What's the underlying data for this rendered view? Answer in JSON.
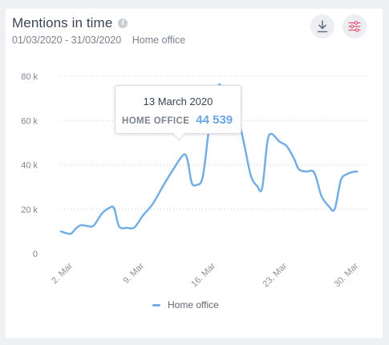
{
  "header": {
    "title": "Mentions in time",
    "date_range": "01/03/2020 - 31/03/2020",
    "filter_label": "Home office"
  },
  "toolbar": {
    "download_icon": "download-icon",
    "settings_icon": "sliders-icon"
  },
  "colors": {
    "line": "#74aee5",
    "tooltip_value": "#6aa6e2",
    "settings_icon": "#e4547a",
    "grid": "#c9ced6"
  },
  "tooltip": {
    "date": "13 March 2020",
    "series": "HOME OFFICE",
    "value": "44 539"
  },
  "chart_data": {
    "type": "line",
    "title": "Mentions in time",
    "x_tick_labels": [
      "2. Mar",
      "9. Mar",
      "16. Mar",
      "23. Mar",
      "30. Mar"
    ],
    "x_tick_days": [
      2,
      9,
      16,
      23,
      30
    ],
    "y_tick_labels": [
      "0",
      "20 k",
      "40 k",
      "60 k",
      "80 k"
    ],
    "y_ticks": [
      0,
      20000,
      40000,
      60000,
      80000
    ],
    "ylim": [
      0,
      80000
    ],
    "xlim": [
      1,
      31
    ],
    "grid": true,
    "legend_position": "bottom-center",
    "series": [
      {
        "name": "Home office",
        "points": [
          [
            1,
            10000
          ],
          [
            1.5,
            9200
          ],
          [
            2,
            9000
          ],
          [
            2.5,
            11500
          ],
          [
            3,
            12800
          ],
          [
            3.6,
            12400
          ],
          [
            4.2,
            12600
          ],
          [
            5,
            18000
          ],
          [
            5.7,
            20500
          ],
          [
            6.2,
            20500
          ],
          [
            6.7,
            12200
          ],
          [
            7.5,
            11600
          ],
          [
            8.2,
            11800
          ],
          [
            9,
            17000
          ],
          [
            10,
            22500
          ],
          [
            11,
            30500
          ],
          [
            12,
            38000
          ],
          [
            13,
            44539
          ],
          [
            13.4,
            42000
          ],
          [
            13.8,
            32000
          ],
          [
            14.3,
            31000
          ],
          [
            14.9,
            35000
          ],
          [
            15.6,
            60000
          ],
          [
            16.2,
            72000
          ],
          [
            16.6,
            76000
          ],
          [
            17.2,
            64000
          ],
          [
            18,
            61000
          ],
          [
            18.6,
            56000
          ],
          [
            19,
            48000
          ],
          [
            19.6,
            35000
          ],
          [
            20.2,
            30500
          ],
          [
            20.7,
            29500
          ],
          [
            21.2,
            50000
          ],
          [
            21.6,
            54000
          ],
          [
            22.4,
            50500
          ],
          [
            23.1,
            48500
          ],
          [
            23.8,
            43000
          ],
          [
            24.3,
            38000
          ],
          [
            25,
            37000
          ],
          [
            25.8,
            36500
          ],
          [
            26.5,
            26000
          ],
          [
            27.2,
            21500
          ],
          [
            27.8,
            20000
          ],
          [
            28.4,
            33000
          ],
          [
            29,
            35800
          ],
          [
            29.6,
            36800
          ],
          [
            30,
            37000
          ]
        ]
      }
    ]
  },
  "legend": {
    "label": "Home office"
  }
}
